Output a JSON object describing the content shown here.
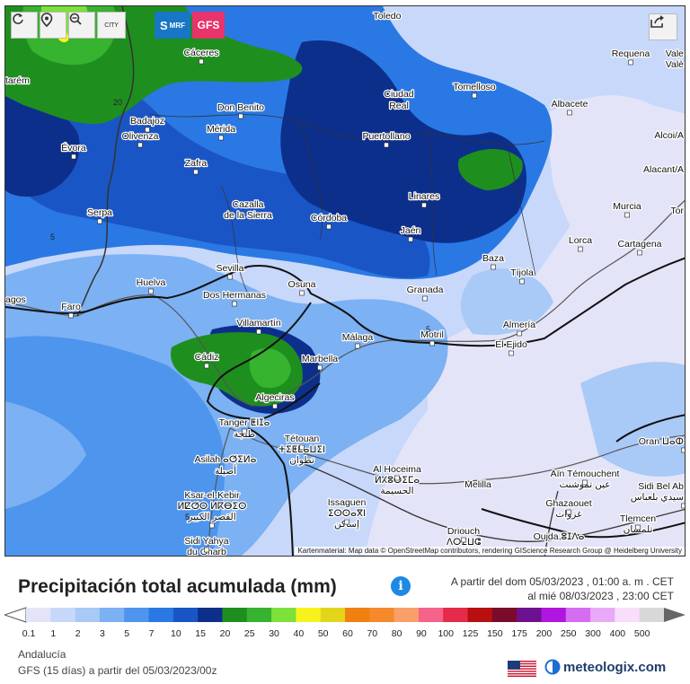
{
  "toolbar": {
    "refresh_icon": "refresh-icon",
    "location_icon": "location-pin-icon",
    "zoom_icon": "zoom-out-icon",
    "city_label": "CITY",
    "model_smrf_prefix": "S",
    "model_smrf_label": "MRF",
    "model_gfs_label": "GFS",
    "share_icon": "share-icon"
  },
  "colors": {
    "smrf_button": "#1777c4",
    "gfs_button": "#e8336b"
  },
  "map": {
    "attribution": "Kartenmaterial: Map data © OpenStreetMap contributors, rendering GIScience Research Group @ Heidelberg University",
    "contour_labels": [
      "20",
      "5",
      "5",
      "5"
    ],
    "cities": [
      {
        "name": "Toledo"
      },
      {
        "name": "Cáceres"
      },
      {
        "name": "tarém"
      },
      {
        "name": "Requena"
      },
      {
        "name": "Vale"
      },
      {
        "name": "Valè"
      },
      {
        "name": "Tomelloso"
      },
      {
        "name": "Ciudad"
      },
      {
        "name": "Real"
      },
      {
        "name": "Don Benito"
      },
      {
        "name": "Badajoz"
      },
      {
        "name": "Mérida"
      },
      {
        "name": "Albacete"
      },
      {
        "name": "Olivenza"
      },
      {
        "name": "Évora"
      },
      {
        "name": "Puertollano"
      },
      {
        "name": "Alcoi/A"
      },
      {
        "name": "Zafra"
      },
      {
        "name": "Alacant/A"
      },
      {
        "name": "Linares"
      },
      {
        "name": "Cazalla"
      },
      {
        "name": "de la Sierra"
      },
      {
        "name": "Serpa"
      },
      {
        "name": "Córdoba"
      },
      {
        "name": "Murcia"
      },
      {
        "name": "Tor"
      },
      {
        "name": "Jaén"
      },
      {
        "name": "Lorca"
      },
      {
        "name": "Cartagena"
      },
      {
        "name": "Sevilla"
      },
      {
        "name": "Baza"
      },
      {
        "name": "Dos Hermanas"
      },
      {
        "name": "Huelva"
      },
      {
        "name": "Tíjola"
      },
      {
        "name": "Osuna"
      },
      {
        "name": "agos"
      },
      {
        "name": "Faro"
      },
      {
        "name": "Granada"
      },
      {
        "name": "Villamartín"
      },
      {
        "name": "Almería"
      },
      {
        "name": "Málaga"
      },
      {
        "name": "Motril"
      },
      {
        "name": "El Ejido"
      },
      {
        "name": "Cádiz"
      },
      {
        "name": "Marbella"
      },
      {
        "name": "Algeciras"
      },
      {
        "name": "Tanger ⵟⵏⵊⴰ"
      },
      {
        "name": "طنجة"
      },
      {
        "name": "Tétouan"
      },
      {
        "name": "ⵜⵉⵟⵟⴰⵡⵉⵏ"
      },
      {
        "name": "تطوان"
      },
      {
        "name": "Oran ⵡⴰⵀ"
      },
      {
        "name": "Asilah ⴰⵚⵉⵍⴰ"
      },
      {
        "name": "أصيلة"
      },
      {
        "name": "Al Hoceima"
      },
      {
        "name": "ⵍⵃⵓⵙⵉⵎⴰ"
      },
      {
        "name": "الحسيمة"
      },
      {
        "name": "Aïn Témouchent"
      },
      {
        "name": "عين تموشنت"
      },
      {
        "name": "Sidi Bel Ab"
      },
      {
        "name": "سيدي بلعباس"
      },
      {
        "name": "Ksar-el-Kebir"
      },
      {
        "name": "ⵍⵇⵚⵔ ⵍⴽⴱⵉⵔ"
      },
      {
        "name": "القصر الكبير"
      },
      {
        "name": "Melilla"
      },
      {
        "name": "Issaguen"
      },
      {
        "name": "ⵉⵙⵙⴰⴳⵏ"
      },
      {
        "name": "إساكن"
      },
      {
        "name": "Ghazaouet"
      },
      {
        "name": "غزوات"
      },
      {
        "name": "Tlemcen"
      },
      {
        "name": "تلمسان"
      },
      {
        "name": "Driouch"
      },
      {
        "name": "ⴷⵔⵉⵡⵛ"
      },
      {
        "name": "Sidi Yahya"
      },
      {
        "name": "du Gharb"
      },
      {
        "name": "Oujda ⵓⵊⴷⴰ"
      }
    ]
  },
  "legend": {
    "title": "Precipitación total acumulada (mm)",
    "info_icon": "info-icon",
    "date_from": "A partir del dom 05/03/2023 , 01:00 a. m . CET",
    "date_to": "al mié 08/03/2023 , 23:00 CET",
    "bins": [
      {
        "label": "0.1",
        "color": "#e4e4f8"
      },
      {
        "label": "1",
        "color": "#c8d8fa"
      },
      {
        "label": "2",
        "color": "#a9c9f7"
      },
      {
        "label": "3",
        "color": "#7cb1f3"
      },
      {
        "label": "5",
        "color": "#4e95ee"
      },
      {
        "label": "7",
        "color": "#2a78e4"
      },
      {
        "label": "10",
        "color": "#1a55c6"
      },
      {
        "label": "15",
        "color": "#0d2f8c"
      },
      {
        "label": "20",
        "color": "#1e8f1e"
      },
      {
        "label": "25",
        "color": "#36b32f"
      },
      {
        "label": "30",
        "color": "#7ce13a"
      },
      {
        "label": "40",
        "color": "#f8f31c"
      },
      {
        "label": "50",
        "color": "#e3d61a"
      },
      {
        "label": "60",
        "color": "#f08010"
      },
      {
        "label": "70",
        "color": "#f5892c"
      },
      {
        "label": "80",
        "color": "#f9a06a"
      },
      {
        "label": "90",
        "color": "#f5628a"
      },
      {
        "label": "100",
        "color": "#e52a4a"
      },
      {
        "label": "125",
        "color": "#b80f0f"
      },
      {
        "label": "150",
        "color": "#7a0b2a"
      },
      {
        "label": "175",
        "color": "#6e1190"
      },
      {
        "label": "200",
        "color": "#b016e0"
      },
      {
        "label": "250",
        "color": "#d56cf2"
      },
      {
        "label": "300",
        "color": "#eaa9f8"
      },
      {
        "label": "400",
        "color": "#f9ddfc"
      },
      {
        "label": "500",
        "color": "#d8d8d8"
      }
    ]
  },
  "footer": {
    "region": "Andalucía",
    "run": "GFS (15 días) a partir del 05/03/2023/00z",
    "flag_icon": "us-flag-icon",
    "brand_icon": "meteologix-logo-icon",
    "brand": "meteologix.com"
  }
}
